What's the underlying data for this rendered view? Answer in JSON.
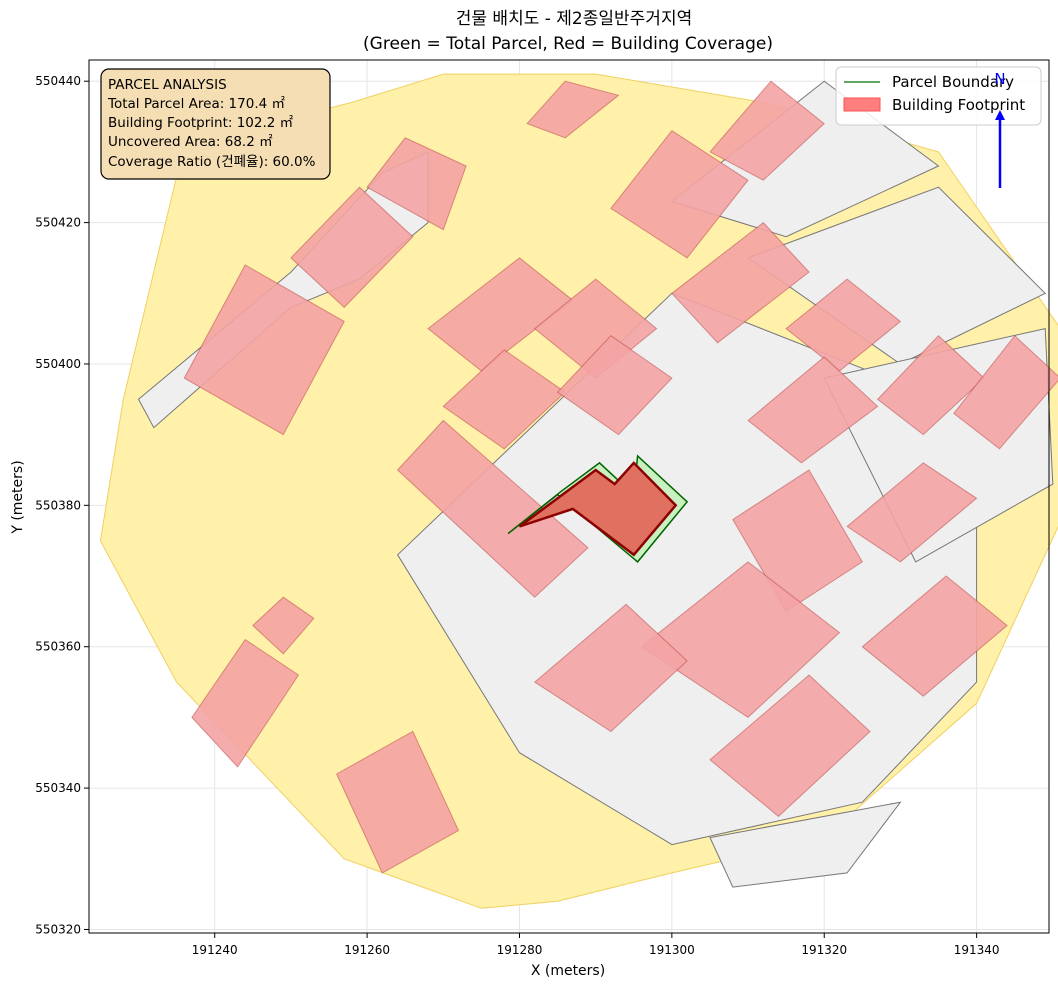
{
  "title": {
    "line1": "건물 배치도 - 제2종일반주거지역",
    "line2": "(Green = Total Parcel, Red = Building Coverage)"
  },
  "axes": {
    "xlabel": "X (meters)",
    "ylabel": "Y (meters)",
    "xlim": [
      191223.5,
      191349.5
    ],
    "ylim": [
      550319.5,
      550443
    ],
    "xticks": [
      "191240",
      "191260",
      "191280",
      "191300",
      "191320",
      "191340"
    ],
    "yticks": [
      "550320",
      "550340",
      "550360",
      "550380",
      "550400",
      "550420",
      "550440"
    ],
    "grid": true
  },
  "info_box": {
    "heading": "PARCEL ANALYSIS",
    "total_parcel_area": "Total Parcel Area: 170.4 ㎡",
    "building_footprint": "Building Footprint: 102.2 ㎡",
    "uncovered_area": "Uncovered Area: 68.2 ㎡",
    "coverage_ratio": "Coverage Ratio (건폐율): 60.0%"
  },
  "legend": {
    "placement": "top-right",
    "items": [
      {
        "label": "Parcel Boundary",
        "color": "#2e8b2e"
      },
      {
        "label": "Building Footprint",
        "color": "#ff7f7f"
      }
    ]
  },
  "north_arrow": {
    "label": "N",
    "color": "#0000ff"
  },
  "colors": {
    "road": "#fff0aa",
    "parcel_fill": "#efefef",
    "parcel_edge": "#777777",
    "building": "#f4a3a3",
    "building_edge": "#b03030",
    "highlight_parcel_fill": "#c8f0c0",
    "highlight_parcel_edge": "#006400",
    "highlight_building_fill": "#e07060",
    "highlight_building_edge": "#8b0000",
    "setback": "#ffb070"
  },
  "chart_data": {
    "type": "map",
    "target_parcel": {
      "outline": [
        [
          191278.5,
          550376
        ],
        [
          191285.5,
          550382
        ],
        [
          191290.5,
          550386
        ],
        [
          191295,
          550381.5
        ],
        [
          191295.5,
          550387
        ],
        [
          191302,
          550380.5
        ],
        [
          191295.5,
          550372
        ],
        [
          191285,
          550381.5
        ],
        [
          191278.5,
          550376
        ]
      ],
      "building": [
        [
          191280,
          550377
        ],
        [
          191290,
          550385
        ],
        [
          191292.5,
          550383
        ],
        [
          191295,
          550386
        ],
        [
          191300.5,
          550380
        ],
        [
          191295,
          550373
        ],
        [
          191287,
          550379.5
        ],
        [
          191280,
          550377
        ]
      ]
    },
    "road": [
      [
        191228,
        550395
      ],
      [
        191236,
        550431
      ],
      [
        191258,
        550437
      ],
      [
        191270,
        550441
      ],
      [
        191290,
        550441
      ],
      [
        191312,
        550437
      ],
      [
        191335,
        550430
      ],
      [
        191351,
        550405
      ],
      [
        191352,
        550380
      ],
      [
        191340,
        550352
      ],
      [
        191320,
        550333
      ],
      [
        191300,
        550328
      ],
      [
        191285,
        550324
      ],
      [
        191275,
        550323
      ],
      [
        191257,
        550330
      ],
      [
        191235,
        550355
      ],
      [
        191225,
        550375
      ],
      [
        191228,
        550395
      ]
    ],
    "blocks": [
      [
        [
          191230,
          550395
        ],
        [
          191250,
          550413
        ],
        [
          191262,
          550427
        ],
        [
          191268,
          550430
        ],
        [
          191268,
          550420
        ],
        [
          191259,
          550412
        ],
        [
          191250,
          550408
        ],
        [
          191232,
          550391
        ]
      ],
      [
        [
          191264,
          550373
        ],
        [
          191300,
          550410
        ],
        [
          191340,
          550393
        ],
        [
          191340,
          550355
        ],
        [
          191325,
          550338
        ],
        [
          191300,
          550332
        ],
        [
          191280,
          550345
        ]
      ],
      [
        [
          191300,
          550423
        ],
        [
          191320,
          550440
        ],
        [
          191335,
          550428
        ],
        [
          191315,
          550418
        ]
      ],
      [
        [
          191310,
          550415
        ],
        [
          191335,
          550425
        ],
        [
          191349,
          550410
        ],
        [
          191330,
          550400
        ]
      ],
      [
        [
          191320,
          550398
        ],
        [
          191349,
          550405
        ],
        [
          191350,
          550383
        ],
        [
          191332,
          550372
        ]
      ],
      [
        [
          191305,
          550333
        ],
        [
          191330,
          550338
        ],
        [
          191323,
          550328
        ],
        [
          191308,
          550326
        ]
      ]
    ],
    "buildings": [
      [
        [
          191236,
          550398
        ],
        [
          191244,
          550414
        ],
        [
          191257,
          550406
        ],
        [
          191249,
          550390
        ]
      ],
      [
        [
          191250,
          550415
        ],
        [
          191259,
          550425
        ],
        [
          191266,
          550418
        ],
        [
          191257,
          550408
        ]
      ],
      [
        [
          191260,
          550425
        ],
        [
          191265,
          550432
        ],
        [
          191273,
          550428
        ],
        [
          191270,
          550419
        ]
      ],
      [
        [
          191281,
          550434
        ],
        [
          191286,
          550440
        ],
        [
          191293,
          550438
        ],
        [
          191286,
          550432
        ]
      ],
      [
        [
          191268,
          550405
        ],
        [
          191280,
          550415
        ],
        [
          191287,
          550409
        ],
        [
          191275,
          550399
        ]
      ],
      [
        [
          191282,
          550405
        ],
        [
          191290,
          550412
        ],
        [
          191298,
          550405
        ],
        [
          191290,
          550398
        ]
      ],
      [
        [
          191270,
          550394
        ],
        [
          191278,
          550402
        ],
        [
          191286,
          550396
        ],
        [
          191278,
          550388
        ]
      ],
      [
        [
          191285,
          550396
        ],
        [
          191292,
          550404
        ],
        [
          191300,
          550398
        ],
        [
          191293,
          550390
        ]
      ],
      [
        [
          191292,
          550422
        ],
        [
          191300,
          550433
        ],
        [
          191310,
          550426
        ],
        [
          191302,
          550415
        ]
      ],
      [
        [
          191305,
          550430
        ],
        [
          191313,
          550440
        ],
        [
          191320,
          550434
        ],
        [
          191312,
          550426
        ]
      ],
      [
        [
          191300,
          550410
        ],
        [
          191312,
          550420
        ],
        [
          191318,
          550413
        ],
        [
          191306,
          550403
        ]
      ],
      [
        [
          191315,
          550405
        ],
        [
          191323,
          550412
        ],
        [
          191330,
          550406
        ],
        [
          191322,
          550399
        ]
      ],
      [
        [
          191310,
          550392
        ],
        [
          191320,
          550401
        ],
        [
          191327,
          550394
        ],
        [
          191317,
          550386
        ]
      ],
      [
        [
          191327,
          550395
        ],
        [
          191335,
          550404
        ],
        [
          191341,
          550398
        ],
        [
          191333,
          550390
        ]
      ],
      [
        [
          191337,
          550393
        ],
        [
          191345,
          550404
        ],
        [
          191351,
          550398
        ],
        [
          191343,
          550388
        ]
      ],
      [
        [
          191323,
          550377
        ],
        [
          191333,
          550386
        ],
        [
          191340,
          550381
        ],
        [
          191330,
          550372
        ]
      ],
      [
        [
          191308,
          550378
        ],
        [
          191318,
          550385
        ],
        [
          191325,
          550372
        ],
        [
          191315,
          550365
        ]
      ],
      [
        [
          191296,
          550360
        ],
        [
          191310,
          550372
        ],
        [
          191322,
          550362
        ],
        [
          191310,
          550350
        ]
      ],
      [
        [
          191305,
          550344
        ],
        [
          191318,
          550356
        ],
        [
          191326,
          550348
        ],
        [
          191314,
          550336
        ]
      ],
      [
        [
          191282,
          550355
        ],
        [
          191294,
          550366
        ],
        [
          191302,
          550358
        ],
        [
          191292,
          550348
        ]
      ],
      [
        [
          191264,
          550385
        ],
        [
          191282,
          550367
        ],
        [
          191289,
          550374
        ],
        [
          191270,
          550392
        ]
      ],
      [
        [
          191325,
          550360
        ],
        [
          191336,
          550370
        ],
        [
          191344,
          550363
        ],
        [
          191333,
          550353
        ]
      ],
      [
        [
          191237,
          550350
        ],
        [
          191244,
          550361
        ],
        [
          191251,
          550356
        ],
        [
          191243,
          550343
        ]
      ],
      [
        [
          191245,
          550363
        ],
        [
          191249,
          550367
        ],
        [
          191253,
          550364
        ],
        [
          191249,
          550359
        ]
      ],
      [
        [
          191256,
          550342
        ],
        [
          191266,
          550348
        ],
        [
          191272,
          550334
        ],
        [
          191262,
          550328
        ]
      ]
    ]
  }
}
